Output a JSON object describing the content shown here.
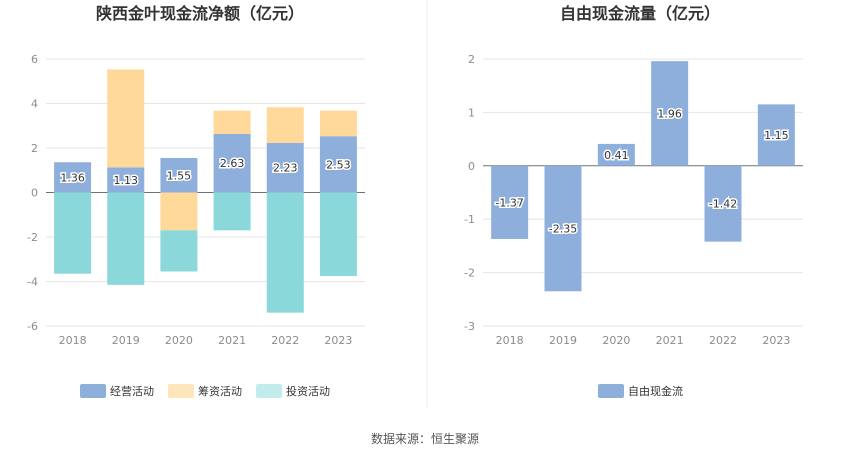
{
  "source_label": "数据来源：恒生聚源",
  "colors": {
    "operating": "#8eaedb",
    "financing": "#ffd99a",
    "investing": "#8ad8da",
    "free_cash_flow": "#8eaedb",
    "investing_legend": "#c2ebec",
    "financing_legend": "#ffe5bb"
  },
  "chart_data": [
    {
      "type": "bar",
      "stacked": true,
      "title": "陕西金叶现金流净额（亿元）",
      "categories": [
        "2018",
        "2019",
        "2020",
        "2021",
        "2022",
        "2023"
      ],
      "ylim": [
        -6,
        6
      ],
      "yticks": [
        6,
        4,
        2,
        0,
        -2,
        -4,
        -6
      ],
      "legend_position": "bottom",
      "grid": true,
      "series": [
        {
          "name": "经营活动",
          "values": [
            1.36,
            1.13,
            1.55,
            2.63,
            2.23,
            2.53
          ],
          "labels": [
            "1.36",
            "1.13",
            "1.55",
            "2.63",
            "2.23",
            "2.53"
          ]
        },
        {
          "name": "筹资活动",
          "values": [
            0.0,
            4.4,
            -1.7,
            1.05,
            1.6,
            1.15
          ]
        },
        {
          "name": "投资活动",
          "values": [
            -3.65,
            -4.15,
            -1.85,
            -1.7,
            -5.4,
            -3.75
          ]
        }
      ]
    },
    {
      "type": "bar",
      "title": "自由现金流量（亿元）",
      "categories": [
        "2018",
        "2019",
        "2020",
        "2021",
        "2022",
        "2023"
      ],
      "ylim": [
        -3,
        2
      ],
      "yticks": [
        2,
        1,
        0,
        -1,
        -2,
        -3
      ],
      "legend_position": "bottom",
      "grid": true,
      "series": [
        {
          "name": "自由现金流",
          "values": [
            -1.37,
            -2.35,
            0.41,
            1.96,
            -1.42,
            1.15
          ],
          "labels": [
            "-1.37",
            "-2.35",
            "0.41",
            "1.96",
            "-1.42",
            "1.15"
          ]
        }
      ]
    }
  ]
}
